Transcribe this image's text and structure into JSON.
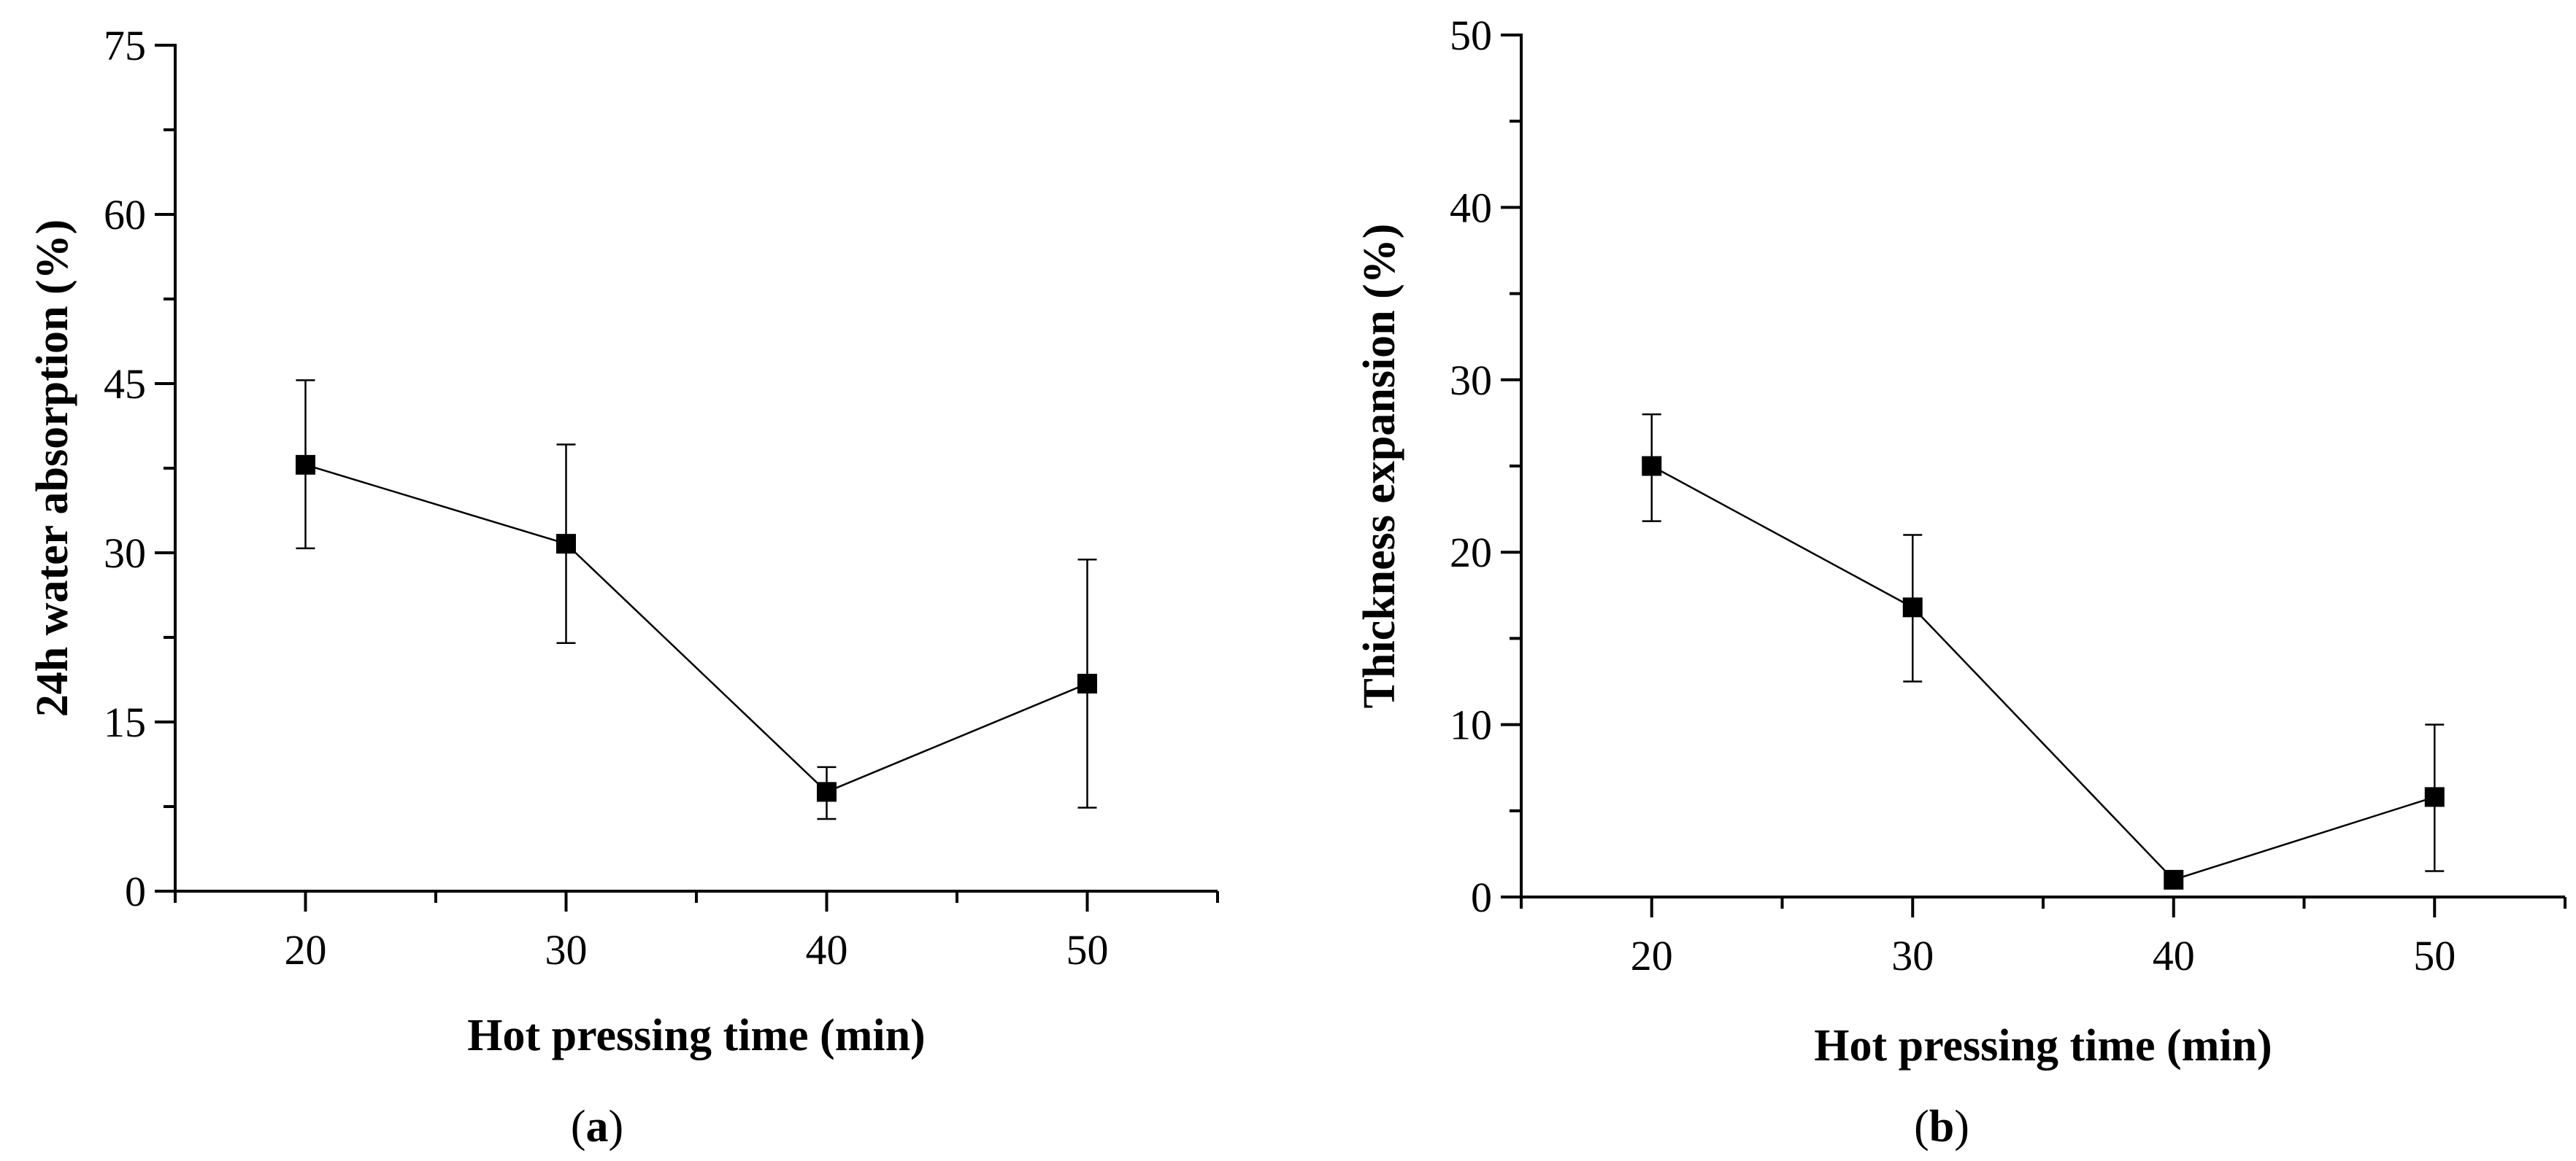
{
  "chart_data": [
    {
      "type": "line",
      "panel_label": "a",
      "x": [
        20,
        30,
        40,
        50
      ],
      "series": [
        {
          "name": "24h water absorption",
          "values": [
            37.8,
            30.8,
            8.8,
            18.4
          ],
          "error_upper": [
            45.3,
            39.6,
            11.0,
            29.4
          ],
          "error_lower": [
            30.4,
            22.0,
            6.4,
            7.4
          ]
        }
      ],
      "xlabel": "Hot pressing time (min)",
      "ylabel": "24h water absorption (%)",
      "xlim": [
        15,
        55
      ],
      "ylim": [
        0,
        75
      ],
      "xticks": [
        20,
        30,
        40,
        50
      ],
      "yticks": [
        0,
        15,
        30,
        45,
        60,
        75
      ],
      "grid": false
    },
    {
      "type": "line",
      "panel_label": "b",
      "x": [
        20,
        30,
        40,
        50
      ],
      "series": [
        {
          "name": "Thickness expansion",
          "values": [
            25.0,
            16.8,
            1.0,
            5.8
          ],
          "error_upper": [
            28.0,
            21.0,
            1.3,
            10.0
          ],
          "error_lower": [
            21.8,
            12.5,
            0.7,
            1.5
          ]
        }
      ],
      "xlabel": "Hot pressing time (min)",
      "ylabel": "Thickness expansion (%)",
      "xlim": [
        15,
        55
      ],
      "ylim": [
        0,
        50
      ],
      "xticks": [
        20,
        30,
        40,
        50
      ],
      "yticks": [
        0,
        10,
        20,
        30,
        40,
        50
      ],
      "grid": false
    }
  ]
}
